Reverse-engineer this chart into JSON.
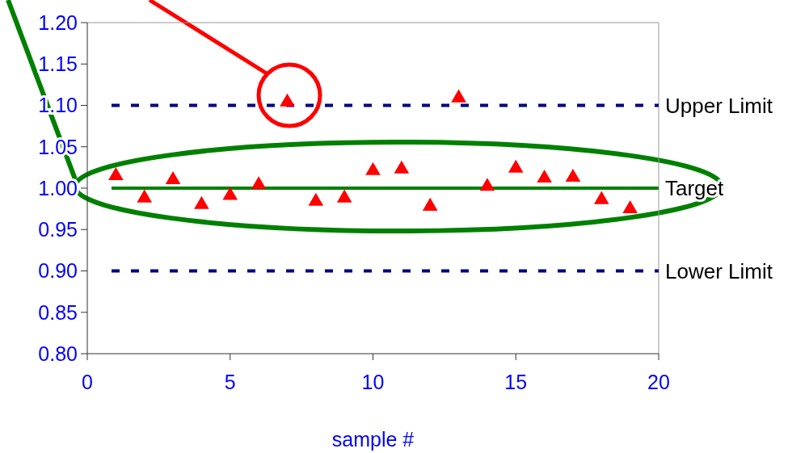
{
  "chart_data": {
    "type": "scatter",
    "xlabel": "sample #",
    "x": [
      1,
      2,
      3,
      4,
      5,
      6,
      7,
      8,
      9,
      10,
      11,
      12,
      13,
      14,
      15,
      16,
      17,
      18,
      19
    ],
    "series": [
      {
        "color": "#ff0000",
        "values": [
          1.015,
          0.988,
          1.01,
          0.98,
          0.991,
          1.004,
          1.104,
          0.984,
          0.988,
          1.021,
          1.023,
          0.978,
          1.109,
          1.002,
          1.024,
          1.012,
          1.013,
          0.986,
          0.975
        ]
      }
    ],
    "marker": "triangle",
    "xlim": [
      0,
      20
    ],
    "xticks": [
      0,
      5,
      10,
      15,
      20
    ],
    "ylim": [
      0.8,
      1.2
    ],
    "yticks": [
      {
        "value": 0.8,
        "label": "0.80"
      },
      {
        "value": 0.85,
        "label": "0.85"
      },
      {
        "value": 0.9,
        "label": "0.90"
      },
      {
        "value": 0.95,
        "label": "0.95"
      },
      {
        "value": 1.0,
        "label": "1.00"
      },
      {
        "value": 1.05,
        "label": "1.05"
      },
      {
        "value": 1.1,
        "label": "1.10"
      },
      {
        "value": 1.15,
        "label": "1.15"
      },
      {
        "value": 1.2,
        "label": "1.20"
      }
    ],
    "ref_lines": [
      {
        "axis": "y",
        "value": 1.1,
        "label": "Upper Limit",
        "color": "#000080",
        "line_style": "dashed"
      },
      {
        "axis": "y",
        "value": 1.0,
        "label": "Target",
        "color": "#008000",
        "line_style": "solid"
      },
      {
        "axis": "y",
        "value": 0.9,
        "label": "Lower Limit",
        "color": "#000080",
        "line_style": "dashed"
      }
    ],
    "grid": false
  }
}
